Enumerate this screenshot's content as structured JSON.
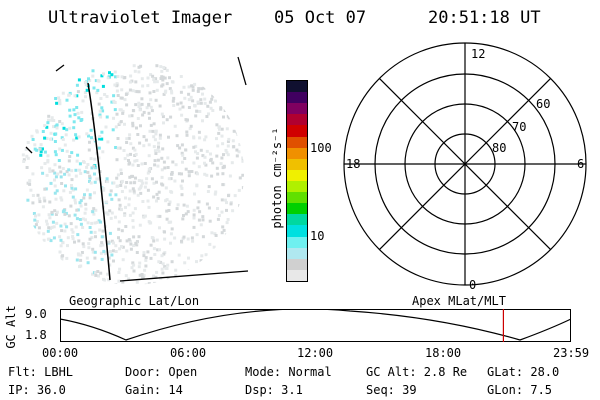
{
  "header": {
    "instrument": "Ultraviolet Imager",
    "date": "05 Oct 07",
    "time": "20:51:18 UT"
  },
  "colorbar": {
    "label": "photon cm⁻²s⁻¹",
    "ticks": [
      "100",
      "10"
    ],
    "colors": [
      "#e8e8e8",
      "#d0d0d0",
      "#b0e8f0",
      "#6ff0f0",
      "#00e0e0",
      "#00d8a0",
      "#00d000",
      "#60e000",
      "#b0f000",
      "#f0f000",
      "#f0c000",
      "#f09000",
      "#e05000",
      "#d00000",
      "#b00030",
      "#800060",
      "#400060",
      "#101030"
    ]
  },
  "geo_panel": {
    "label": "Geographic Lat/Lon"
  },
  "polar_panel": {
    "label": "Apex MLat/MLT",
    "mlt_labels": {
      "top": "12",
      "left": "18",
      "right": "6",
      "bottom": "0"
    },
    "lat_labels": [
      "60",
      "70",
      "80"
    ]
  },
  "altitude_plot": {
    "ylabel": "GC Alt",
    "yticks": [
      "9.0",
      "1.8"
    ],
    "xticks": [
      "00:00",
      "06:00",
      "12:00",
      "18:00",
      "23:59"
    ],
    "marker_time": "20:51",
    "marker_color": "#cc0000"
  },
  "info": {
    "flt": "Flt: LBHL",
    "ip": "IP: 36.0",
    "door": "Door: Open",
    "gain": "Gain: 14",
    "mode": "Mode: Normal",
    "dsp": "Dsp:     3.1",
    "gcalt": "GC Alt: 2.8 Re",
    "seq": "Seq: 39",
    "glat": "GLat:  28.0",
    "glon": "GLon:   7.5"
  }
}
